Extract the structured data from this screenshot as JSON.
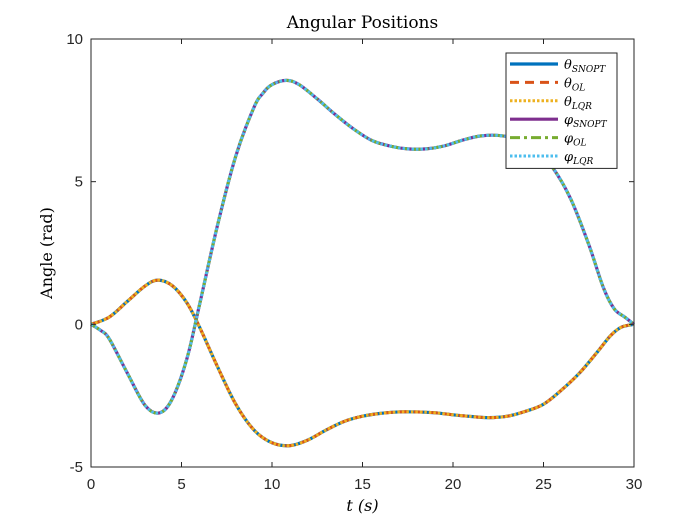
{
  "chart_data": {
    "type": "line",
    "title": "Angular Positions",
    "xlabel": "t (s)",
    "ylabel": "Angle (rad)",
    "xlim": [
      0,
      30
    ],
    "ylim": [
      -5,
      10
    ],
    "xticks": [
      0,
      5,
      10,
      15,
      20,
      25,
      30
    ],
    "yticks": [
      -5,
      0,
      5,
      10
    ],
    "grid": false,
    "legend_position": "top-right",
    "theta_x": [
      0,
      1,
      2,
      3,
      3.7,
      4.5,
      5.3,
      6,
      7,
      8,
      9,
      10,
      11,
      12,
      13,
      14,
      15,
      16,
      17,
      18,
      19,
      20,
      21,
      22,
      23,
      24,
      25,
      26,
      27,
      28,
      28.7,
      29.3,
      30
    ],
    "theta_y": [
      0,
      0.25,
      0.8,
      1.35,
      1.55,
      1.35,
      0.75,
      -0.1,
      -1.5,
      -2.8,
      -3.7,
      -4.15,
      -4.25,
      -4.05,
      -3.7,
      -3.4,
      -3.22,
      -3.12,
      -3.07,
      -3.07,
      -3.1,
      -3.17,
      -3.23,
      -3.27,
      -3.22,
      -3.05,
      -2.8,
      -2.3,
      -1.7,
      -0.95,
      -0.4,
      -0.1,
      0
    ],
    "phi_x": [
      0,
      0.5,
      1,
      2,
      3,
      3.8,
      4.5,
      5.3,
      6,
      7,
      8,
      9,
      9.5,
      10,
      10.8,
      11.5,
      12.5,
      13.5,
      14.5,
      15.5,
      16.5,
      17.5,
      18.5,
      19.5,
      20.5,
      21.5,
      22.5,
      23.5,
      24.5,
      25.5,
      26.5,
      27.5,
      28.3,
      28.9,
      29.5,
      30
    ],
    "phi_y": [
      0,
      -0.2,
      -0.5,
      -1.7,
      -2.85,
      -3.1,
      -2.6,
      -1.2,
      0.7,
      3.5,
      5.9,
      7.6,
      8.1,
      8.4,
      8.55,
      8.4,
      7.9,
      7.35,
      6.85,
      6.45,
      6.25,
      6.15,
      6.15,
      6.25,
      6.45,
      6.6,
      6.62,
      6.5,
      6.2,
      5.5,
      4.4,
      2.8,
      1.3,
      0.55,
      0.25,
      0
    ],
    "series": [
      {
        "name": "θ_SNOPT",
        "legend_main": "θ",
        "legend_sub": "SNOPT",
        "curve": "theta",
        "color": "#0072BD",
        "dash": "",
        "width": 3.2
      },
      {
        "name": "θ_OL",
        "legend_main": "θ",
        "legend_sub": "OL",
        "curve": "theta",
        "color": "#D95319",
        "dash": "9 6",
        "width": 3
      },
      {
        "name": "θ_LQR",
        "legend_main": "θ",
        "legend_sub": "LQR",
        "curve": "theta",
        "color": "#EDB120",
        "dash": "2.5 2",
        "width": 3
      },
      {
        "name": "φ_SNOPT",
        "legend_main": "φ",
        "legend_sub": "SNOPT",
        "curve": "phi",
        "color": "#7E2F8E",
        "dash": "",
        "width": 3.2
      },
      {
        "name": "φ_OL",
        "legend_main": "φ",
        "legend_sub": "OL",
        "curve": "phi",
        "color": "#77AC30",
        "dash": "10 4 3 4",
        "width": 3
      },
      {
        "name": "φ_LQR",
        "legend_main": "φ",
        "legend_sub": "LQR",
        "curve": "phi",
        "color": "#4DBEEE",
        "dash": "2.5 2",
        "width": 3
      }
    ]
  }
}
